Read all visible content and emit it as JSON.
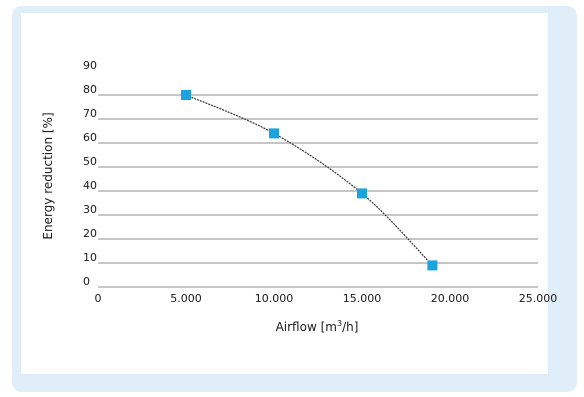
{
  "chart_data": {
    "type": "scatter",
    "title": "",
    "xlabel_prefix": "Airflow [m",
    "xlabel_sup": "3",
    "xlabel_suffix": "/h]",
    "ylabel": "Energy reduction [%]",
    "xlim": [
      0,
      25000
    ],
    "ylim": [
      0,
      90
    ],
    "x_ticks": [
      0,
      5000,
      10000,
      15000,
      20000,
      25000
    ],
    "x_tick_labels": [
      "0",
      "5.000",
      "10.000",
      "15.000",
      "20.000",
      "25.000"
    ],
    "y_ticks": [
      0,
      10,
      20,
      30,
      40,
      50,
      60,
      70,
      80,
      90
    ],
    "y_tick_labels": [
      "0",
      "10",
      "20",
      "30",
      "40",
      "50",
      "60",
      "70",
      "80",
      "90"
    ],
    "grid": "horizontal",
    "series": [
      {
        "points": [
          {
            "x": 5000,
            "y": 80
          },
          {
            "x": 10000,
            "y": 64
          },
          {
            "x": 15000,
            "y": 39
          },
          {
            "x": 19000,
            "y": 9
          }
        ]
      }
    ],
    "marker_color": "#1aa3dc",
    "line_color": "#333333",
    "grid_color": "#8c8c8c"
  }
}
